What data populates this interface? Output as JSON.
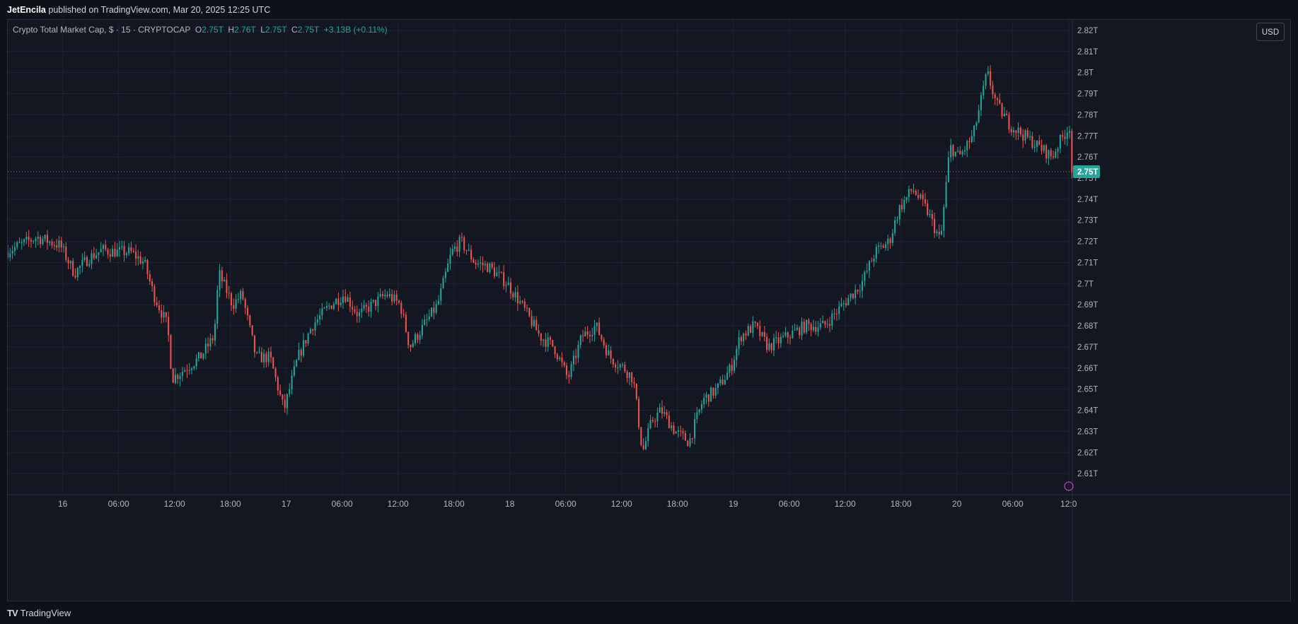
{
  "header": {
    "author": "JetEncila",
    "text": "published on TradingView.com, Mar 20, 2025 12:25 UTC"
  },
  "legend": {
    "symbol": "Crypto Total Market Cap, $ · 15 · CRYPTOCAP",
    "open_label": "O",
    "open": "2.75T",
    "high_label": "H",
    "high": "2.76T",
    "low_label": "L",
    "low": "2.75T",
    "close_label": "C",
    "close": "2.75T",
    "change": "+3.13B (+0.11%)"
  },
  "currency_button": "USD",
  "footer": {
    "logo": "TV",
    "brand": "TradingView"
  },
  "colors": {
    "up": "#26a69a",
    "down": "#ef5350",
    "background": "#131722",
    "grid": "#1f2330",
    "price_tag": "#26a69a",
    "text": "#b2b5be"
  },
  "chart_data": {
    "type": "candlestick",
    "ylim": [
      2.6,
      2.825
    ],
    "y_ticks": [
      "2.61T",
      "2.62T",
      "2.63T",
      "2.64T",
      "2.65T",
      "2.66T",
      "2.67T",
      "2.68T",
      "2.69T",
      "2.7T",
      "2.71T",
      "2.72T",
      "2.73T",
      "2.74T",
      "2.75T",
      "2.76T",
      "2.77T",
      "2.78T",
      "2.79T",
      "2.8T",
      "2.81T",
      "2.82T"
    ],
    "y_tick_values": [
      2.61,
      2.62,
      2.63,
      2.64,
      2.65,
      2.66,
      2.67,
      2.68,
      2.69,
      2.7,
      2.71,
      2.72,
      2.73,
      2.74,
      2.75,
      2.76,
      2.77,
      2.78,
      2.79,
      2.8,
      2.81,
      2.82
    ],
    "x_ticks": [
      "16",
      "06:00",
      "12:00",
      "18:00",
      "17",
      "06:00",
      "12:00",
      "18:00",
      "18",
      "06:00",
      "12:00",
      "18:00",
      "19",
      "06:00",
      "12:00",
      "18:00",
      "20",
      "06:00",
      "12:0"
    ],
    "x_tick_hours": [
      24,
      30,
      36,
      42,
      48,
      54,
      60,
      66,
      72,
      78,
      84,
      90,
      96,
      102,
      108,
      114,
      120,
      126,
      132
    ],
    "x_range_hours": [
      18.1,
      132.4
    ],
    "last_price": 2.753,
    "last_price_label": "2.75T",
    "price_anchors_hours": [
      18.1,
      21.5,
      24.0,
      25.5,
      27.0,
      28.5,
      30.0,
      31.5,
      33.0,
      34.0,
      35.5,
      36.0,
      37.5,
      39.0,
      40.5,
      41.0,
      42.5,
      43.5,
      45.0,
      46.5,
      48.0,
      49.5,
      51.0,
      53.0,
      54.5,
      56.0,
      57.5,
      59.0,
      60.5,
      61.5,
      63.0,
      64.5,
      66.0,
      67.0,
      68.5,
      70.0,
      72.0,
      73.5,
      75.5,
      77.0,
      78.5,
      80.0,
      81.5,
      83.0,
      84.5,
      85.5,
      86.5,
      87.5,
      88.5,
      90.0,
      91.5,
      93.0,
      94.5,
      96.0,
      97.0,
      98.5,
      100.0,
      102.0,
      104.0,
      106.0,
      108.0,
      110.0,
      111.5,
      113.0,
      114.0,
      115.5,
      117.0,
      118.5,
      119.5,
      120.5,
      122.0,
      123.5,
      124.5,
      126.0,
      127.5,
      129.0,
      130.5,
      131.0,
      132.4
    ],
    "price_anchors": [
      2.715,
      2.722,
      2.718,
      2.705,
      2.712,
      2.716,
      2.715,
      2.715,
      2.71,
      2.695,
      2.68,
      2.655,
      2.66,
      2.665,
      2.675,
      2.705,
      2.69,
      2.695,
      2.665,
      2.665,
      2.64,
      2.665,
      2.68,
      2.69,
      2.695,
      2.685,
      2.69,
      2.695,
      2.69,
      2.67,
      2.68,
      2.69,
      2.715,
      2.72,
      2.71,
      2.708,
      2.7,
      2.69,
      2.675,
      2.67,
      2.655,
      2.675,
      2.68,
      2.665,
      2.66,
      2.655,
      2.62,
      2.635,
      2.64,
      2.63,
      2.625,
      2.645,
      2.65,
      2.66,
      2.675,
      2.68,
      2.67,
      2.675,
      2.68,
      2.68,
      2.69,
      2.7,
      2.715,
      2.72,
      2.735,
      2.745,
      2.735,
      2.72,
      2.765,
      2.76,
      2.77,
      2.8,
      2.785,
      2.775,
      2.77,
      2.765,
      2.76,
      2.765,
      2.775,
      2.753
    ]
  }
}
